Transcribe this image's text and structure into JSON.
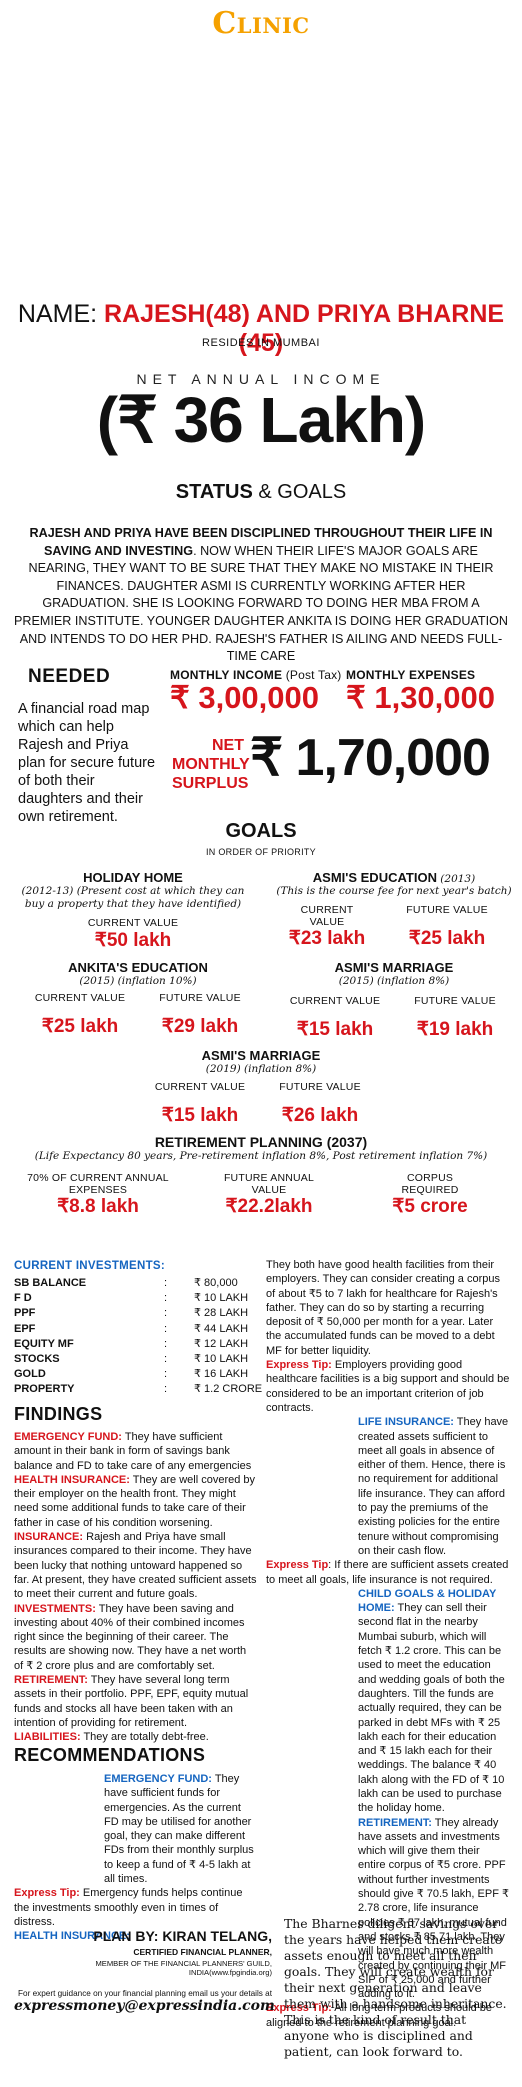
{
  "brand": {
    "logo": "Clinic"
  },
  "header": {
    "name_prefix": "NAME: ",
    "name": "RAJESH(48) AND PRIYA BHARNE (45)",
    "resides": "RESIDES IN MUMBAI",
    "net_income_label": "NET ANNUAL INCOME",
    "net_income_value": "(₹ 36 Lakh)",
    "status_bold": "STATUS",
    "status_rest": " & GOALS"
  },
  "intro": {
    "bold": "RAJESH AND PRIYA HAVE BEEN DISCIPLINED THROUGHOUT THEIR LIFE IN SAVING AND INVESTING",
    "rest": ". NOW WHEN THEIR LIFE'S MAJOR GOALS ARE NEARING, THEY WANT TO BE SURE THAT THEY MAKE NO MISTAKE IN THEIR FINANCES. DAUGHTER ASMI IS CURRENTLY WORKING AFTER HER GRADUATION. SHE IS LOOKING FORWARD TO DOING HER MBA FROM A PREMIER INSTITUTE. YOUNGER DAUGHTER ANKITA IS DOING HER GRADUATION AND INTENDS TO DO HER PhD. RAJESH'S FATHER IS AILING AND NEEDS FULL-TIME CARE"
  },
  "needed": {
    "title": "NEEDED",
    "body": "A financial road map which can help Rajesh and Priya plan for secure future of both their daughters and their own retirement."
  },
  "money": {
    "income_label": "MONTHLY INCOME",
    "income_note": " (Post Tax)",
    "income_value": "₹ 3,00,000",
    "expenses_label": "MONTHLY EXPENSES",
    "expenses_value": "₹ 1,30,000",
    "surplus_label_1": "NET",
    "surplus_label_2": "MONTHLY",
    "surplus_label_3": "SURPLUS",
    "surplus_value": "₹ 1,70,000"
  },
  "goals": {
    "title": "GOALS",
    "subtitle": "IN ORDER OF PRIORITY",
    "holiday": {
      "title": "HOLIDAY HOME",
      "note": "(2012-13) (Present cost at which they can buy a property that they have identified)",
      "label": "CURRENT VALUE",
      "value": "₹50 lakh"
    },
    "asmi_edu": {
      "title": "ASMI'S EDUCATION",
      "year": " (2013)",
      "note": "(This is the course fee for next year's batch)",
      "cur_label": "CURRENT VALUE",
      "cur_value": "₹23 lakh",
      "fut_label": "FUTURE VALUE",
      "fut_value": "₹25 lakh"
    },
    "ankita_edu": {
      "title": "ANKITA'S EDUCATION",
      "note": "(2015) (inflation 10%)",
      "cur_label": "CURRENT VALUE",
      "cur_value": "₹25 lakh",
      "fut_label": "FUTURE VALUE",
      "fut_value": "₹29 lakh"
    },
    "asmi_marriage": {
      "title": "ASMI'S MARRIAGE",
      "note": "(2015) (inflation 8%)",
      "cur_label": "CURRENT VALUE",
      "cur_value": "₹15 lakh",
      "fut_label": "FUTURE VALUE",
      "fut_value": "₹19 lakh"
    },
    "asmi_marriage_2": {
      "title": "ASMI'S MARRIAGE",
      "note": "(2019) (inflation 8%)",
      "cur_label": "CURRENT VALUE",
      "cur_value": "₹15 lakh",
      "fut_label": "FUTURE VALUE",
      "fut_value": "₹26 lakh"
    },
    "retirement": {
      "title": "RETIREMENT PLANNING (2037)",
      "note": "(Life Expectancy 80 years, Pre-retirement inflation 8%, Post retirement inflation 7%)",
      "a_label": "70% OF CURRENT ANNUAL EXPENSES",
      "a_value": "₹8.8 lakh",
      "b_label": "FUTURE ANNUAL VALUE",
      "b_value": "₹22.2lakh",
      "c_label": "CORPUS REQUIRED",
      "c_value": "₹5 crore"
    }
  },
  "investments": {
    "title": "CURRENT INVESTMENTS:",
    "rows": [
      {
        "k": "SB BALANCE",
        "v": "₹ 80,000"
      },
      {
        "k": "F D",
        "v": "₹ 10 LAKH"
      },
      {
        "k": "PPF",
        "v": "₹ 28 LAKH"
      },
      {
        "k": "EPF",
        "v": "₹ 44 LAKH"
      },
      {
        "k": "EQUITY MF",
        "v": "₹ 12 LAKH"
      },
      {
        "k": "STOCKS",
        "v": "₹ 10 LAKH"
      },
      {
        "k": "GOLD",
        "v": "₹ 16 LAKH"
      },
      {
        "k": "PROPERTY",
        "v": "₹ 1.2 CRORE"
      }
    ],
    "colon": ":"
  },
  "findings": {
    "title": "FINDINGS",
    "items": [
      {
        "lead": "EMERGENCY FUND:",
        "text": " They have sufficient amount in their bank in form of savings bank balance and FD to take care of any emergencies"
      },
      {
        "lead": "HEALTH INSURANCE:",
        "text": " They are well covered by their employer on the health front. They might need some additional funds to take care of their father in case of his condition worsening."
      },
      {
        "lead": "INSURANCE:",
        "text": " Rajesh and Priya have small insurances compared to their income. They have been lucky that nothing untoward happened so far. At present, they have created sufficient assets to meet their current and future goals."
      },
      {
        "lead": "INVESTMENTS:",
        "text": " They have been saving and investing about 40% of their combined incomes right since the beginning of their career. The results are showing now. They have a net worth of ₹ 2 crore plus and are comfortably set."
      },
      {
        "lead": "RETIREMENT:",
        "text": " They have several long term assets in their portfolio. PPF, EPF, equity mutual funds and stocks all have been taken with an intention of providing for retirement."
      },
      {
        "lead": "LIABILITIES:",
        "text": " They are totally debt-free."
      }
    ]
  },
  "recommendations": {
    "title": "RECOMMENDATIONS",
    "emergency_lead": "EMERGENCY FUND:",
    "emergency_text": " They have sufficient funds for emergencies. As the current FD may be utilised for another goal, they can make different FDs from their monthly surplus to keep a fund of ₹ 4-5 lakh at all times.",
    "tip1_lead": "Express Tip:",
    "tip1_text": " Emergency funds helps continue the investments smoothly even in times of distress.",
    "health_lead": "HEALTH INSURANCE:",
    "health_text": " They both have good health facilities from their employers. They can consider creating a corpus of about ₹5 to 7 lakh for healthcare for Rajesh's father. They can do so by starting a recurring deposit of ₹ 50,000 per month for a year. Later the accumulated funds can be moved to a debt MF for better liquidity.",
    "tip2_lead": "Express Tip:",
    "tip2_text": " Employers providing good healthcare facilities is a big support and should be considered to be an important criterion of job contracts.",
    "life_lead": "LIFE INSURANCE:",
    "life_text": " They have created assets sufficient to meet all goals in absence of either of them. Hence, there is no requirement for additional life insurance. They can afford to pay the premiums of the existing policies for the entire tenure without compromising on their cash flow.",
    "tip3_lead": "Express Tip",
    "tip3_text": ": If there are sufficient assets created to meet all goals, life insurance is not required.",
    "child_lead": "CHILD GOALS & HOLIDAY HOME:",
    "child_text": " They can sell their second flat in the nearby Mumbai suburb, which will fetch ₹ 1.2 crore. This can be used to meet the education and wedding goals of both the daughters. Till the funds are actually required, they can be parked in debt MFs with ₹ 25 lakh each for their education and ₹ 15 lakh each for their weddings. The balance ₹ 40 lakh along with the FD of ₹ 10 lakh can be used to purchase the holiday home.",
    "ret_lead": "RETIREMENT:",
    "ret_text": " They already have assets and investments which will give them their entire corpus of ₹5 crore. PPF without further investments should give ₹ 70.5 lakh, EPF ₹ 2.78 crore, life insurance policies ₹ 57 lakh, mutual fund and stocks ₹ 85.71 lakh. They will have much more wealth created by continuing their MF SIP of ₹ 25,000 and further adding to it.",
    "tip4_lead": "Express Tip:",
    "tip4_text": " All long-term products should be aligned to the retirement planning goal."
  },
  "footer": {
    "plan_by_label": "PLAN BY",
    "planner": ": KIRAN TELANG,",
    "cert": "CERTIFIED FINANCIAL PLANNER,",
    "member": "MEMBER OF THE FINANCIAL PLANNERS' GUILD, INDIA(www.fpgindia.org)",
    "contact": "For expert guidance on your financial planning email us your details at",
    "email": "expressmoney@expressindia.com",
    "quote": "The Bharnes diligent savings over the years have helped them create assets enough to meet all their goals. They will create wealth for their next generation and leave them with a handsome inheritance. This is the kind of result that anyone who is disciplined and patient, can look forward to."
  }
}
